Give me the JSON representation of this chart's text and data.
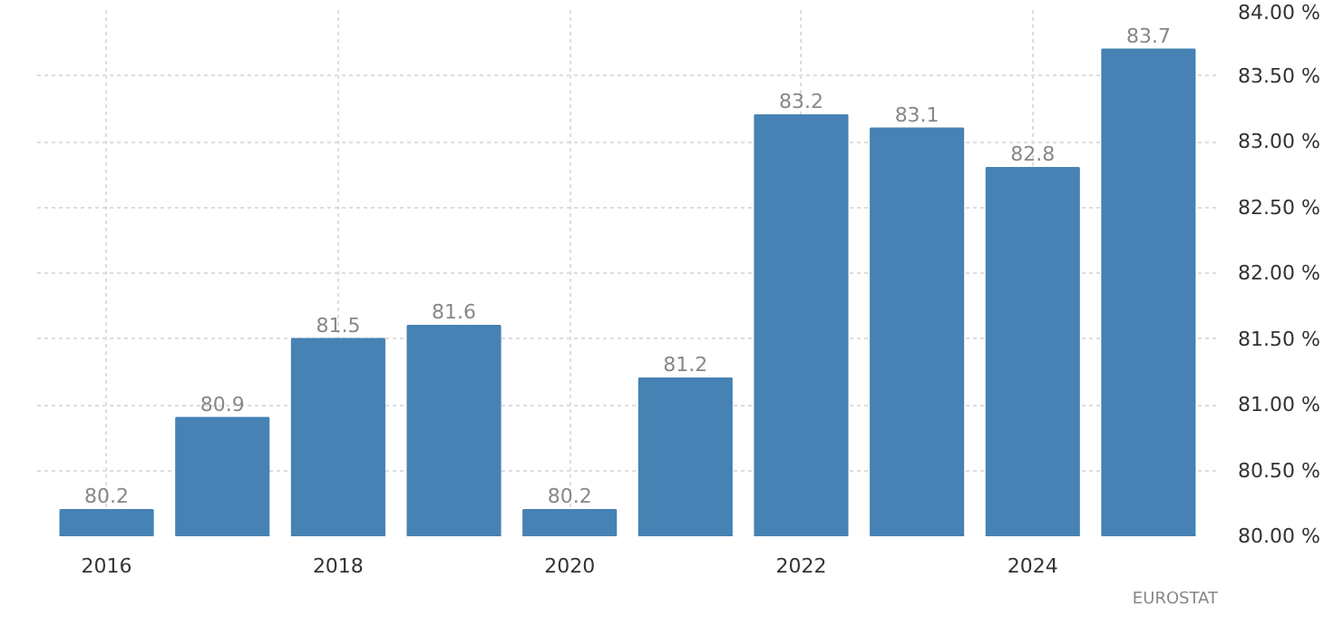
{
  "chart_data": {
    "type": "bar",
    "x": [
      2016,
      2017,
      2018,
      2019,
      2020,
      2021,
      2022,
      2023,
      2024,
      2025
    ],
    "values": [
      80.2,
      80.9,
      81.5,
      81.6,
      80.2,
      81.2,
      83.2,
      83.1,
      82.8,
      83.7
    ],
    "color": "#4682b4",
    "data_labels": true,
    "grid": true,
    "xlim": [
      2015.4,
      2025.6
    ],
    "xticks": [
      2016,
      2018,
      2020,
      2022,
      2024
    ],
    "ylim": [
      80,
      84
    ],
    "yticks": [
      {
        "value": 80,
        "label": "80.00 %"
      },
      {
        "value": 80.5,
        "label": "80.50 %"
      },
      {
        "value": 81,
        "label": "81.00 %"
      },
      {
        "value": 81.5,
        "label": "81.50 %"
      },
      {
        "value": 82,
        "label": "82.00 %"
      },
      {
        "value": 82.5,
        "label": "82.50 %"
      },
      {
        "value": 83,
        "label": "83.00 %"
      },
      {
        "value": 83.5,
        "label": "83.50 %"
      },
      {
        "value": 84,
        "label": "84.00 %"
      }
    ],
    "annotations": [
      "EUROSTAT"
    ]
  }
}
